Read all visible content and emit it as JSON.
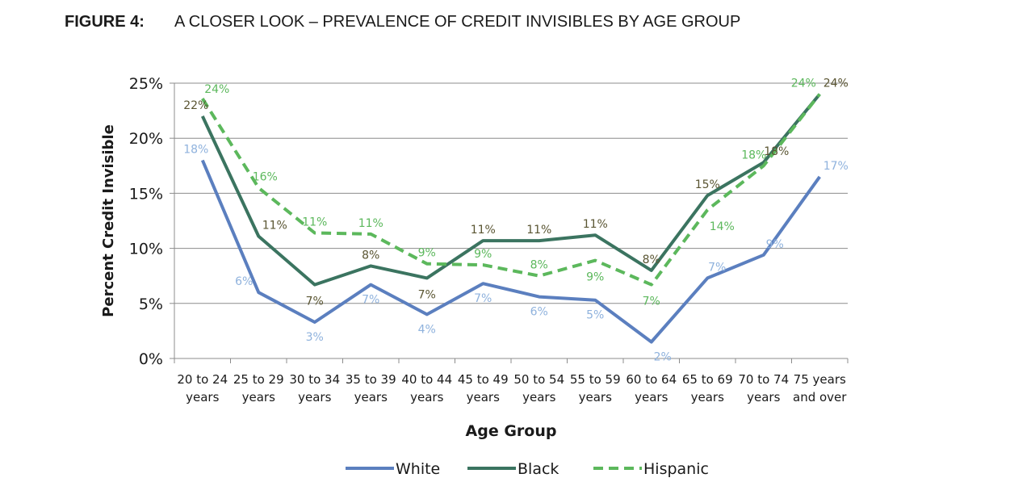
{
  "figure": {
    "label": "FIGURE 4:",
    "title": "A CLOSER LOOK – PREVALENCE OF CREDIT INVISIBLES BY AGE GROUP"
  },
  "chart_data": {
    "type": "line",
    "xlabel": "Age Group",
    "ylabel": "Percent Credit Invisible",
    "ylim": [
      0,
      25
    ],
    "yticks": [
      "0%",
      "5%",
      "10%",
      "15%",
      "20%",
      "25%"
    ],
    "grid": true,
    "legend_position": "bottom",
    "categories": [
      [
        "20 to 24",
        "years"
      ],
      [
        "25 to 29",
        "years"
      ],
      [
        "30 to 34",
        "years"
      ],
      [
        "35 to 39",
        "years"
      ],
      [
        "40 to 44",
        "years"
      ],
      [
        "45 to 49",
        "years"
      ],
      [
        "50 to 54",
        "years"
      ],
      [
        "55 to 59",
        "years"
      ],
      [
        "60 to 64",
        "years"
      ],
      [
        "65 to 69",
        "years"
      ],
      [
        "70 to 74",
        "years"
      ],
      [
        "75 years",
        "and over"
      ]
    ],
    "series": [
      {
        "name": "White",
        "color": "#5b7fbf",
        "label_color": "#8fb2dd",
        "dashed": false,
        "values": [
          18.0,
          6.0,
          3.3,
          6.7,
          4.0,
          6.8,
          5.6,
          5.3,
          1.5,
          7.3,
          9.4,
          16.5
        ],
        "labels": [
          "18%",
          "6%",
          "3%",
          "7%",
          "4%",
          "7%",
          "6%",
          "5%",
          "2%",
          "7%",
          "9%",
          "17%"
        ]
      },
      {
        "name": "Black",
        "color": "#3b7460",
        "label_color": "#5a5532",
        "dashed": false,
        "values": [
          22.0,
          11.1,
          6.7,
          8.4,
          7.3,
          10.7,
          10.7,
          11.2,
          8.0,
          14.8,
          17.8,
          24.0
        ],
        "labels": [
          "22%",
          "11%",
          "7%",
          "8%",
          "7%",
          "11%",
          "11%",
          "11%",
          "8%",
          "15%",
          "18%",
          "24%"
        ]
      },
      {
        "name": "Hispanic",
        "color": "#5cb85c",
        "label_color": "#5cb85c",
        "dashed": true,
        "values": [
          23.6,
          15.5,
          11.4,
          11.3,
          8.6,
          8.5,
          7.5,
          8.9,
          6.7,
          13.5,
          17.5,
          24.0
        ],
        "labels": [
          "24%",
          "16%",
          "11%",
          "11%",
          "9%",
          "9%",
          "8%",
          "9%",
          "7%",
          "14%",
          "18%",
          "24%"
        ]
      }
    ]
  }
}
